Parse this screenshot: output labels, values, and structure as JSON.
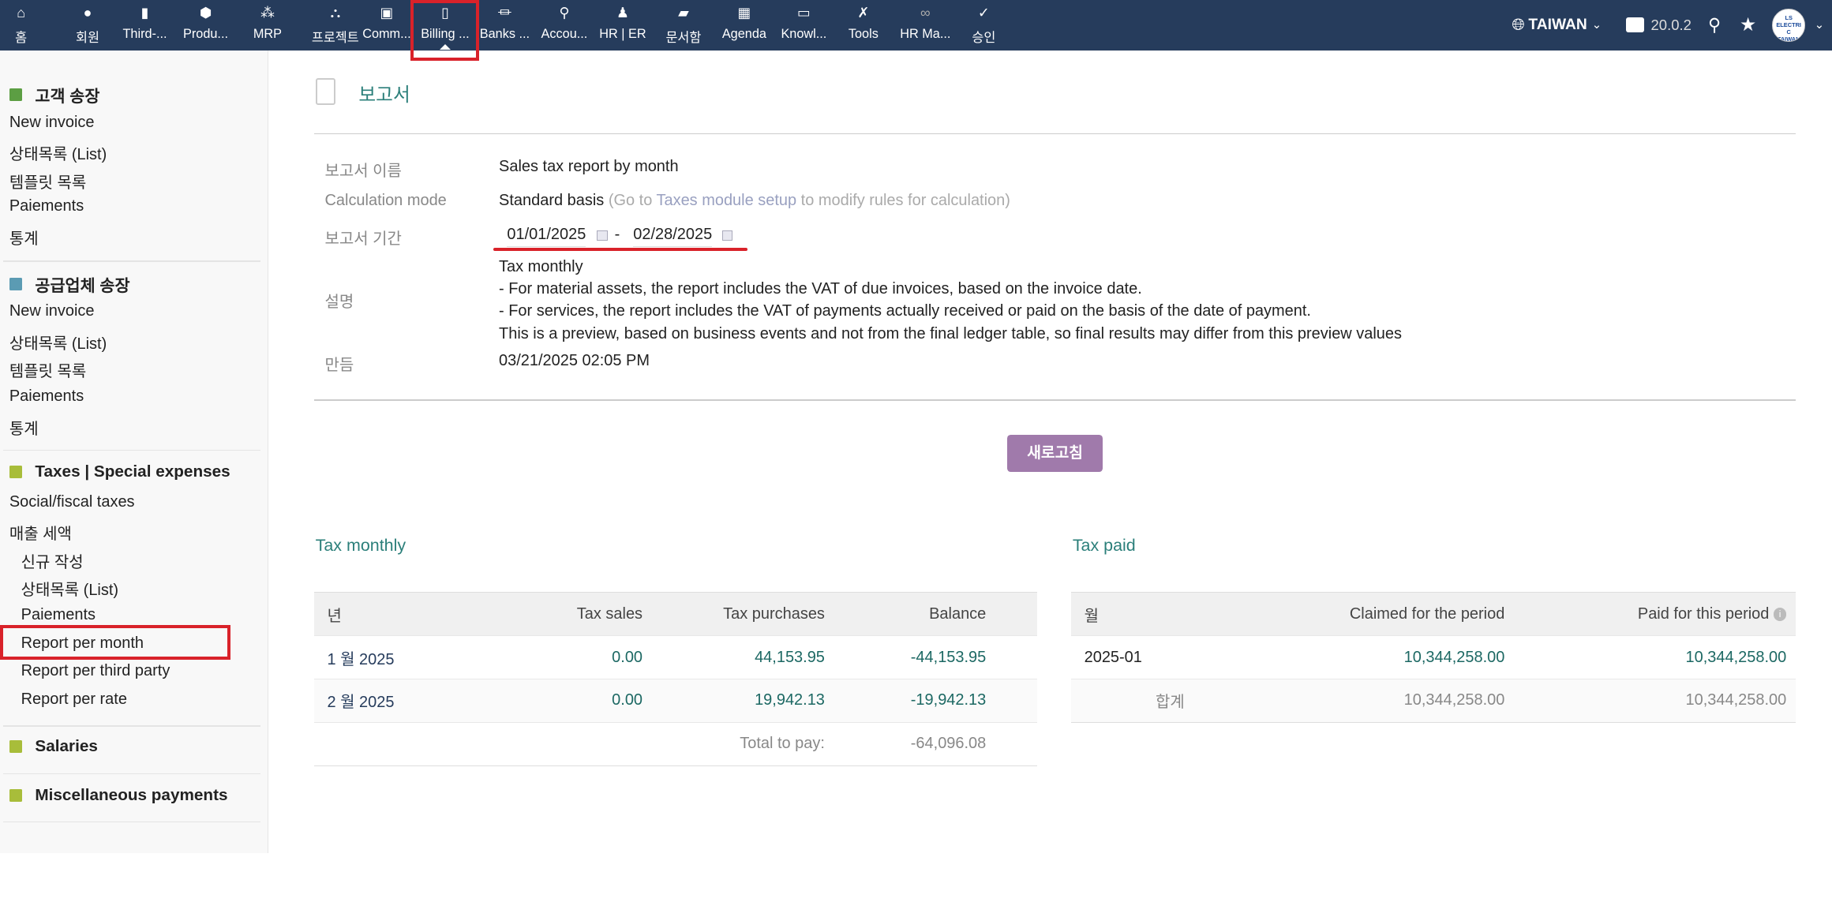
{
  "topnav": {
    "items": [
      {
        "icon": "home-icon",
        "label": "홈"
      },
      {
        "icon": "user-icon",
        "label": "회원"
      },
      {
        "icon": "building-icon",
        "label": "Third-..."
      },
      {
        "icon": "cube-icon",
        "label": "Produ..."
      },
      {
        "icon": "cubes-icon",
        "label": "MRP"
      },
      {
        "icon": "project-icon",
        "label": "프로젝트"
      },
      {
        "icon": "briefcase-icon",
        "label": "Comm..."
      },
      {
        "icon": "invoice-icon",
        "label": "Billing ..."
      },
      {
        "icon": "bank-icon",
        "label": "Banks ..."
      },
      {
        "icon": "search-dollar-icon",
        "label": "Accou..."
      },
      {
        "icon": "user-tie-icon",
        "label": "HR | ER"
      },
      {
        "icon": "folder-icon",
        "label": "문서함"
      },
      {
        "icon": "calendar-icon",
        "label": "Agenda"
      },
      {
        "icon": "knowledge-icon",
        "label": "Knowl..."
      },
      {
        "icon": "tools-icon",
        "label": "Tools"
      },
      {
        "icon": "glasses-icon",
        "label": "HR Ma..."
      },
      {
        "icon": "user-check-icon",
        "label": "승인"
      }
    ],
    "active": "Billing ...",
    "entity": "TAIWAN",
    "version": "20.0.2",
    "avatar_text": "LS ELECTRIC TAIWAN"
  },
  "sidebar": {
    "customer_invoices": {
      "title": "고객 송장",
      "items": [
        "New invoice",
        "상태목록 (List)",
        "템플릿 목록",
        "Paiements",
        "통계"
      ]
    },
    "supplier_invoices": {
      "title": "공급업체 송장",
      "items": [
        "New invoice",
        "상태목록 (List)",
        "템플릿 목록",
        "Paiements",
        "통계"
      ]
    },
    "taxes": {
      "title": "Taxes | Special expenses",
      "items": [
        "Social/fiscal taxes",
        "매출 세액"
      ],
      "sub_items": [
        "신규 작성",
        "상태목록 (List)",
        "Paiements",
        "Report per month",
        "Report per third party",
        "Report per rate"
      ]
    },
    "salaries": {
      "title": "Salaries"
    },
    "misc": {
      "title": "Miscellaneous payments"
    },
    "active": "Report per month"
  },
  "page": {
    "title": "보고서",
    "fields": {
      "name_label": "보고서 이름",
      "name_value": "Sales tax report by month",
      "calc_label": "Calculation mode",
      "calc_value": "Standard basis",
      "calc_hint_pre": "(Go to ",
      "calc_hint_link": "Taxes module setup",
      "calc_hint_post": " to modify rules for calculation)",
      "period_label": "보고서 기간",
      "date_from": "01/01/2025",
      "date_sep": "-",
      "date_to": "02/28/2025",
      "desc_label": "설명",
      "desc_lines": [
        "Tax monthly",
        "- For material assets, the report includes the VAT of due invoices, based on the invoice date.",
        "- For services, the report includes the VAT of payments actually received or paid on the basis of the date of payment.",
        "This is a preview, based on business events and not from the final ledger table, so final results may differ from this preview values"
      ],
      "made_label": "만듬",
      "made_value": "03/21/2025 02:05 PM"
    },
    "refresh_button": "새로고침"
  },
  "tax_monthly": {
    "title": "Tax monthly",
    "headers": [
      "년",
      "Tax sales",
      "Tax purchases",
      "Balance"
    ],
    "rows": [
      [
        "1 월 2025",
        "0.00",
        "44,153.95",
        "-44,153.95"
      ],
      [
        "2 월 2025",
        "0.00",
        "19,942.13",
        "-19,942.13"
      ]
    ],
    "total_label": "Total to pay:",
    "total_value": "-64,096.08"
  },
  "tax_paid": {
    "title": "Tax paid",
    "headers": [
      "월",
      "Claimed for the period",
      "Paid for this period"
    ],
    "rows": [
      [
        "2025-01",
        "10,344,258.00",
        "10,344,258.00"
      ]
    ],
    "total": [
      "합계",
      "10,344,258.00",
      "10,344,258.00"
    ]
  },
  "colors": {
    "topbar": "#263c5c",
    "accent_teal": "#2b7f7a",
    "button": "#a07aab",
    "highlight": "#d9222a"
  }
}
